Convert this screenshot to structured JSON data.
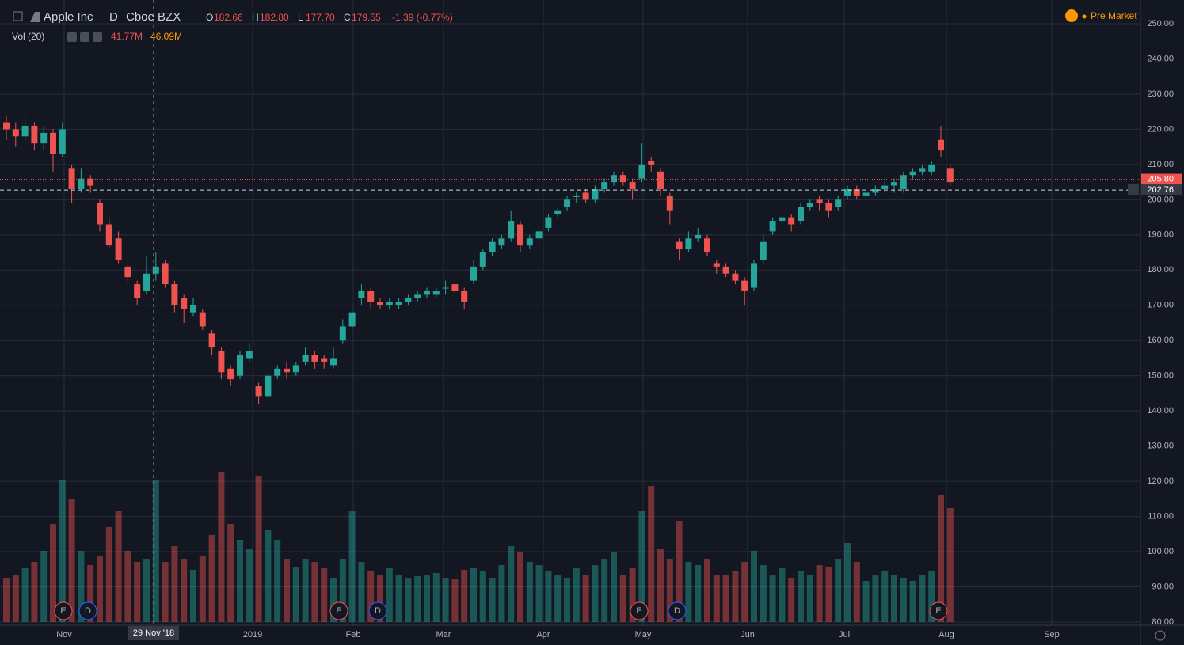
{
  "chart_data": {
    "type": "candlestick",
    "header": {
      "title": "Apple Inc",
      "interval": "D",
      "exchange": "Cboe BZX",
      "ohlc": [
        {
          "key": "O",
          "value": "182.66"
        },
        {
          "key": "H",
          "value": "182.80"
        },
        {
          "key": "L",
          "value": "177.70"
        },
        {
          "key": "C",
          "value": "179.55"
        }
      ],
      "change": "-1.39 (-0.77%)",
      "volume_label": "Vol (20)",
      "volume_values": [
        "41.77M",
        "46.09M"
      ],
      "status": "Pre Market"
    },
    "ylim": [
      78,
      253
    ],
    "yticks": [
      {
        "value": 80,
        "label": "80.00"
      },
      {
        "value": 90,
        "label": "90.00"
      },
      {
        "value": 100,
        "label": "100.00"
      },
      {
        "value": 110,
        "label": "110.00"
      },
      {
        "value": 120,
        "label": "120.00"
      },
      {
        "value": 130,
        "label": "130.00"
      },
      {
        "value": 140,
        "label": "140.00"
      },
      {
        "value": 150,
        "label": "150.00"
      },
      {
        "value": 160,
        "label": "160.00"
      },
      {
        "value": 170,
        "label": "170.00"
      },
      {
        "value": 180,
        "label": "180.00"
      },
      {
        "value": 190,
        "label": "190.00"
      },
      {
        "value": 200,
        "label": "200.00"
      },
      {
        "value": 210,
        "label": "210.00"
      },
      {
        "value": 220,
        "label": "220.00"
      },
      {
        "value": 230,
        "label": "230.00"
      },
      {
        "value": 240,
        "label": "240.00"
      },
      {
        "value": 250,
        "label": "250.00"
      }
    ],
    "months": [
      "Nov",
      "2019",
      "Feb",
      "Mar",
      "Apr",
      "May",
      "Jun",
      "Jul",
      "Aug",
      "Sep"
    ],
    "crosshair_label": "29 Nov '18",
    "price_lines": [
      {
        "value": 205.8,
        "label": "205.80",
        "color": "#ef5350"
      },
      {
        "value": 202.76,
        "label": "202.76",
        "color": "#d1d4dc"
      }
    ],
    "events": [
      "E",
      "D",
      "E",
      "D",
      "E",
      "D",
      "E"
    ],
    "up_color": "#26a69a",
    "down_color": "#ef5350",
    "candles": [
      [
        222,
        224,
        217,
        220
      ],
      [
        220,
        222,
        215,
        218
      ],
      [
        218,
        224,
        216,
        221
      ],
      [
        221,
        222,
        214,
        216
      ],
      [
        216,
        221,
        214,
        219
      ],
      [
        219,
        220,
        208,
        213
      ],
      [
        213,
        222,
        212,
        220
      ],
      [
        209,
        210,
        199,
        203
      ],
      [
        203,
        209,
        202,
        206
      ],
      [
        206,
        207,
        202,
        204
      ],
      [
        199,
        200,
        191,
        193
      ],
      [
        193,
        195,
        186,
        187
      ],
      [
        189,
        191,
        182,
        183
      ],
      [
        181,
        182,
        176,
        178
      ],
      [
        176,
        177,
        170,
        172
      ],
      [
        174,
        184,
        173,
        179
      ],
      [
        179,
        185,
        177,
        181
      ],
      [
        182,
        183,
        175,
        176
      ],
      [
        176,
        177,
        168,
        170
      ],
      [
        172,
        173,
        165,
        169
      ],
      [
        168,
        172,
        167,
        170
      ],
      [
        168,
        169,
        163,
        164
      ],
      [
        162,
        163,
        156,
        158
      ],
      [
        157,
        158,
        149,
        151
      ],
      [
        152,
        153,
        147,
        149
      ],
      [
        150,
        157,
        149,
        156
      ],
      [
        155,
        159,
        154,
        157
      ],
      [
        147,
        148,
        142,
        144
      ],
      [
        144,
        151,
        143,
        150
      ],
      [
        150,
        153,
        149,
        152
      ],
      [
        152,
        154,
        149,
        151
      ],
      [
        151,
        154,
        150,
        153
      ],
      [
        154,
        158,
        153,
        156
      ],
      [
        156,
        157,
        152,
        154
      ],
      [
        155,
        156,
        152,
        154
      ],
      [
        153,
        158,
        152,
        155
      ],
      [
        160,
        166,
        159,
        164
      ],
      [
        164,
        170,
        163,
        168
      ],
      [
        172,
        176,
        170,
        174
      ],
      [
        174,
        175,
        169,
        171
      ],
      [
        171,
        172,
        169,
        170
      ],
      [
        170,
        172,
        169,
        171
      ],
      [
        170,
        172,
        169,
        171
      ],
      [
        171,
        173,
        170,
        172
      ],
      [
        172,
        174,
        171,
        173
      ],
      [
        173,
        175,
        172,
        174
      ],
      [
        173,
        175,
        172,
        174
      ],
      [
        175,
        177,
        173,
        175
      ],
      [
        176,
        177,
        173,
        174
      ],
      [
        174,
        175,
        169,
        171
      ],
      [
        177,
        183,
        176,
        181
      ],
      [
        181,
        186,
        180,
        185
      ],
      [
        185,
        189,
        184,
        188
      ],
      [
        187,
        190,
        186,
        189
      ],
      [
        189,
        197,
        188,
        194
      ],
      [
        193,
        194,
        185,
        187
      ],
      [
        187,
        190,
        186,
        189
      ],
      [
        189,
        192,
        188,
        191
      ],
      [
        192,
        196,
        191,
        195
      ],
      [
        196,
        198,
        195,
        197
      ],
      [
        198,
        201,
        197,
        200
      ],
      [
        201,
        202,
        199,
        201
      ],
      [
        202,
        203,
        199,
        200
      ],
      [
        200,
        204,
        199,
        203
      ],
      [
        203,
        206,
        202,
        205
      ],
      [
        205,
        208,
        204,
        207
      ],
      [
        207,
        208,
        204,
        205
      ],
      [
        205,
        206,
        200,
        203
      ],
      [
        206,
        216,
        205,
        210
      ],
      [
        211,
        212,
        208,
        210
      ],
      [
        208,
        209,
        201,
        203
      ],
      [
        201,
        202,
        193,
        197
      ],
      [
        188,
        189,
        183,
        186
      ],
      [
        186,
        191,
        185,
        189
      ],
      [
        189,
        192,
        188,
        190
      ],
      [
        189,
        190,
        184,
        185
      ],
      [
        182,
        183,
        179,
        181
      ],
      [
        181,
        182,
        178,
        179
      ],
      [
        179,
        180,
        176,
        177
      ],
      [
        177,
        178,
        170,
        174
      ],
      [
        175,
        183,
        174,
        182
      ],
      [
        183,
        190,
        182,
        188
      ],
      [
        191,
        195,
        190,
        194
      ],
      [
        194,
        196,
        193,
        195
      ],
      [
        195,
        196,
        191,
        193
      ],
      [
        194,
        199,
        193,
        198
      ],
      [
        198,
        200,
        197,
        199
      ],
      [
        200,
        201,
        197,
        199
      ],
      [
        199,
        200,
        195,
        197
      ],
      [
        198,
        201,
        197,
        200
      ],
      [
        201,
        204,
        200,
        203
      ],
      [
        203,
        204,
        200,
        201
      ],
      [
        201,
        203,
        200,
        202
      ],
      [
        202,
        204,
        201,
        203
      ],
      [
        203,
        205,
        202,
        204
      ],
      [
        204,
        206,
        202,
        205
      ],
      [
        203,
        208,
        202,
        207
      ],
      [
        207,
        209,
        206,
        208
      ],
      [
        208,
        210,
        207,
        209
      ],
      [
        208,
        211,
        207,
        210
      ],
      [
        217,
        221,
        212,
        214
      ],
      [
        209,
        210,
        204,
        205
      ]
    ],
    "volume": [
      28,
      30,
      34,
      38,
      45,
      62,
      90,
      78,
      45,
      36,
      42,
      60,
      70,
      45,
      38,
      40,
      90,
      38,
      48,
      40,
      33,
      42,
      55,
      95,
      62,
      52,
      46,
      92,
      58,
      52,
      40,
      35,
      40,
      38,
      34,
      28,
      40,
      70,
      38,
      32,
      30,
      34,
      30,
      28,
      29,
      30,
      31,
      28,
      27,
      33,
      34,
      32,
      28,
      36,
      48,
      44,
      38,
      36,
      32,
      30,
      28,
      34,
      30,
      36,
      40,
      44,
      30,
      34,
      70,
      86,
      46,
      40,
      64,
      38,
      36,
      40,
      30,
      30,
      32,
      38,
      45,
      36,
      30,
      34,
      28,
      32,
      30,
      36,
      35,
      40,
      50,
      38,
      26,
      30,
      32,
      30,
      28,
      26,
      30,
      32,
      80,
      72
    ]
  }
}
